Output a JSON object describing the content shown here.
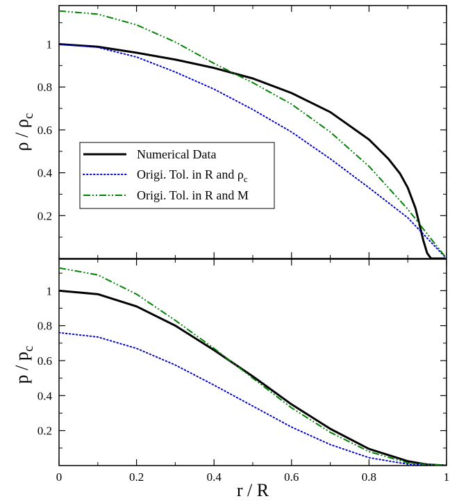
{
  "chart_data": [
    {
      "type": "line",
      "ylabel": "ρ / ρ",
      "ylabel_sub": "c",
      "xlim": [
        0,
        1
      ],
      "ylim": [
        0,
        1.18
      ],
      "x_ticks": [
        "0",
        "0.2",
        "0.4",
        "0.6",
        "0.8",
        "1"
      ],
      "y_ticks": [
        "0.2",
        "0.4",
        "0.6",
        "0.8",
        "1"
      ],
      "legend": {
        "placement": "center-left",
        "entries": [
          "Numerical Data",
          "Origi. Tol. in R and ρ",
          "Origi. Tol. in R and M"
        ],
        "entry_subscripts": [
          "",
          "c",
          ""
        ]
      },
      "series": [
        {
          "name": "Numerical Data",
          "color": "#000000",
          "style": "solid",
          "x": [
            0,
            0.1,
            0.2,
            0.3,
            0.4,
            0.5,
            0.6,
            0.7,
            0.8,
            0.85,
            0.88,
            0.9,
            0.92,
            0.93,
            0.94,
            0.95,
            0.96,
            1.0
          ],
          "y": [
            1.0,
            0.988,
            0.96,
            0.928,
            0.889,
            0.84,
            0.772,
            0.683,
            0.555,
            0.465,
            0.396,
            0.33,
            0.234,
            0.16,
            0.085,
            0.025,
            0.0,
            0.0
          ]
        },
        {
          "name": "Origi. Tol. in R and ρc",
          "color": "#0000cc",
          "style": "dotted",
          "x": [
            0,
            0.1,
            0.2,
            0.3,
            0.4,
            0.5,
            0.6,
            0.7,
            0.8,
            0.9,
            1.0
          ],
          "y": [
            1.0,
            0.985,
            0.94,
            0.87,
            0.79,
            0.695,
            0.59,
            0.465,
            0.33,
            0.19,
            0.0
          ]
        },
        {
          "name": "Origi. Tol. in R and M",
          "color": "#008000",
          "style": "dashdot",
          "x": [
            0,
            0.1,
            0.2,
            0.3,
            0.4,
            0.5,
            0.6,
            0.7,
            0.8,
            0.9,
            1.0
          ],
          "y": [
            1.155,
            1.14,
            1.09,
            1.01,
            0.91,
            0.82,
            0.72,
            0.59,
            0.43,
            0.23,
            0.0
          ]
        }
      ]
    },
    {
      "type": "line",
      "ylabel": "p / p",
      "ylabel_sub": "c",
      "xlabel": "r / R",
      "xlim": [
        0,
        1
      ],
      "ylim": [
        0,
        1.18
      ],
      "x_ticks": [
        "0",
        "0.2",
        "0.4",
        "0.6",
        "0.8",
        "1"
      ],
      "y_ticks": [
        "0.2",
        "0.4",
        "0.6",
        "0.8",
        "1"
      ],
      "series": [
        {
          "name": "Numerical Data",
          "color": "#000000",
          "style": "solid",
          "x": [
            0,
            0.1,
            0.2,
            0.3,
            0.4,
            0.5,
            0.6,
            0.7,
            0.8,
            0.9,
            0.95,
            1.0
          ],
          "y": [
            1.0,
            0.98,
            0.91,
            0.8,
            0.66,
            0.51,
            0.35,
            0.21,
            0.095,
            0.025,
            0.006,
            0.0
          ]
        },
        {
          "name": "Origi. Tol. in R and ρc",
          "color": "#0000cc",
          "style": "dotted",
          "x": [
            0,
            0.1,
            0.2,
            0.3,
            0.4,
            0.5,
            0.6,
            0.7,
            0.8,
            0.9,
            1.0
          ],
          "y": [
            0.76,
            0.735,
            0.67,
            0.575,
            0.46,
            0.34,
            0.22,
            0.12,
            0.045,
            0.008,
            0.0
          ]
        },
        {
          "name": "Origi. Tol. in R and M",
          "color": "#008000",
          "style": "dashdot",
          "x": [
            0,
            0.1,
            0.2,
            0.3,
            0.4,
            0.5,
            0.6,
            0.7,
            0.8,
            0.9,
            1.0
          ],
          "y": [
            1.13,
            1.09,
            0.98,
            0.83,
            0.67,
            0.5,
            0.33,
            0.19,
            0.08,
            0.015,
            0.0
          ]
        }
      ]
    }
  ]
}
